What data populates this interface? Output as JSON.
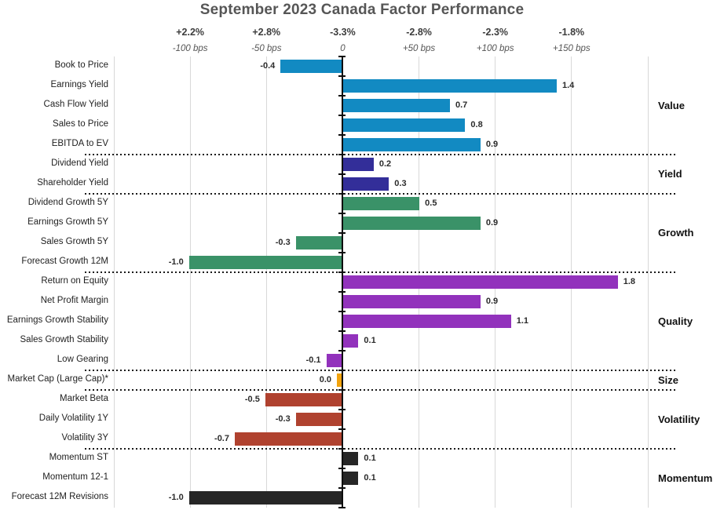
{
  "title": "September 2023 Canada Factor Performance",
  "colors": {
    "grid": "#d8d8d8",
    "zero_axis": "#0d0d0d",
    "title_text": "#565656",
    "percent_text": "#3d3d3d",
    "bps_text": "#555555",
    "separator": "#1a1a1a"
  },
  "chart_data": {
    "type": "bar",
    "orientation": "horizontal",
    "title": "September 2023 Canada Factor Performance",
    "header": {
      "percent_labels": [
        "+2.2%",
        "+2.8%",
        "-3.3%",
        "-2.8%",
        "-2.3%",
        "-1.8%"
      ],
      "bps_labels": [
        "-100 bps",
        "-50 bps",
        "0",
        "+50 bps",
        "+100 bps",
        "+150 bps"
      ],
      "bps_values": [
        -100,
        -50,
        0,
        50,
        100,
        150
      ]
    },
    "axis": {
      "xlim_bps": [
        -150,
        200
      ],
      "gridline_step_bps": 50,
      "bar_units_per_100bps": 1.0,
      "grid_on": true
    },
    "groups": [
      {
        "label": "Value",
        "color": "#128ac2",
        "factors": [
          {
            "label": "Book to Price",
            "value": -0.4
          },
          {
            "label": "Earnings Yield",
            "value": 1.4
          },
          {
            "label": "Cash Flow Yield",
            "value": 0.7
          },
          {
            "label": "Sales to Price",
            "value": 0.8
          },
          {
            "label": "EBITDA to EV",
            "value": 0.9
          }
        ]
      },
      {
        "label": "Yield",
        "color": "#332e99",
        "factors": [
          {
            "label": "Dividend Yield",
            "value": 0.2
          },
          {
            "label": "Shareholder Yield",
            "value": 0.3
          }
        ]
      },
      {
        "label": "Growth",
        "color": "#3a9268",
        "factors": [
          {
            "label": "Dividend Growth 5Y",
            "value": 0.5
          },
          {
            "label": "Earnings Growth 5Y",
            "value": 0.9
          },
          {
            "label": "Sales Growth 5Y",
            "value": -0.3
          },
          {
            "label": "Forecast Growth 12M",
            "value": -1.0
          }
        ]
      },
      {
        "label": "Quality",
        "color": "#9232bc",
        "factors": [
          {
            "label": "Return on Equity",
            "value": 1.8
          },
          {
            "label": "Net Profit Margin",
            "value": 0.9
          },
          {
            "label": "Earnings Growth Stability",
            "value": 1.1
          },
          {
            "label": "Sales Growth Stability",
            "value": 0.1
          },
          {
            "label": "Low Gearing",
            "value": -0.1
          }
        ]
      },
      {
        "label": "Size",
        "color": "#f2a30d",
        "factors": [
          {
            "label": "Market Cap (Large Cap)*",
            "value": 0.0
          }
        ]
      },
      {
        "label": "Volatility",
        "color": "#b0422f",
        "factors": [
          {
            "label": "Market Beta",
            "value": -0.5
          },
          {
            "label": "Daily Volatility 1Y",
            "value": -0.3
          },
          {
            "label": "Volatility 3Y",
            "value": -0.7
          }
        ]
      },
      {
        "label": "Momentum",
        "color": "#262626",
        "factors": [
          {
            "label": "Momentum ST",
            "value": 0.1
          },
          {
            "label": "Momentum 12-1",
            "value": 0.1
          },
          {
            "label": "Forecast 12M Revisions",
            "value": -1.0
          }
        ]
      }
    ]
  }
}
